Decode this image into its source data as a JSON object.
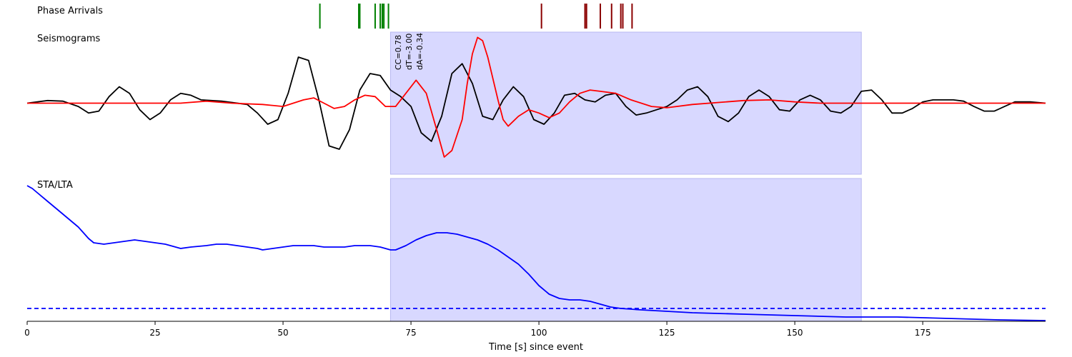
{
  "chart_data": [
    {
      "type": "event-markers",
      "title": "Phase Arrivals",
      "series": [
        {
          "color": "#008000",
          "x": [
            57.2,
            64.8,
            65.0,
            68.0,
            69.0,
            69.4,
            69.7,
            70.6
          ]
        },
        {
          "color": "#8b0000",
          "x": [
            100.5,
            109.0,
            109.3,
            112.0,
            114.2,
            116.0,
            116.4,
            118.2
          ]
        }
      ]
    },
    {
      "type": "line",
      "title": "Seismograms",
      "window": [
        71.0,
        163.0
      ],
      "window_color": "#d8d8ff",
      "annotations": [
        "CC=0.78",
        "dT=-3.00",
        "dA=-0.34"
      ],
      "ylim": [
        -1.08,
        1.08
      ],
      "series": [
        {
          "color": "#000000",
          "points": [
            [
              0,
              0
            ],
            [
              4,
              0.04
            ],
            [
              7,
              0.03
            ],
            [
              10,
              -0.05
            ],
            [
              12,
              -0.15
            ],
            [
              14,
              -0.12
            ],
            [
              16,
              0.1
            ],
            [
              18,
              0.25
            ],
            [
              20,
              0.15
            ],
            [
              22,
              -0.1
            ],
            [
              24,
              -0.25
            ],
            [
              26,
              -0.15
            ],
            [
              28,
              0.05
            ],
            [
              30,
              0.15
            ],
            [
              32,
              0.12
            ],
            [
              34,
              0.05
            ],
            [
              38,
              0.03
            ],
            [
              43,
              -0.02
            ],
            [
              45,
              -0.15
            ],
            [
              47,
              -0.32
            ],
            [
              49,
              -0.25
            ],
            [
              51,
              0.15
            ],
            [
              53,
              0.7
            ],
            [
              55,
              0.65
            ],
            [
              57,
              0.05
            ],
            [
              59,
              -0.65
            ],
            [
              61,
              -0.7
            ],
            [
              63,
              -0.4
            ],
            [
              65,
              0.2
            ],
            [
              67,
              0.45
            ],
            [
              69,
              0.42
            ],
            [
              71,
              0.2
            ],
            [
              73,
              0.1
            ],
            [
              75,
              -0.05
            ],
            [
              77,
              -0.45
            ],
            [
              79,
              -0.58
            ],
            [
              81,
              -0.2
            ],
            [
              83,
              0.45
            ],
            [
              85,
              0.6
            ],
            [
              87,
              0.3
            ],
            [
              89,
              -0.2
            ],
            [
              91,
              -0.25
            ],
            [
              93,
              0.05
            ],
            [
              95,
              0.25
            ],
            [
              97,
              0.1
            ],
            [
              99,
              -0.25
            ],
            [
              101,
              -0.32
            ],
            [
              103,
              -0.15
            ],
            [
              105,
              0.12
            ],
            [
              107,
              0.15
            ],
            [
              109,
              0.05
            ],
            [
              111,
              0.02
            ],
            [
              113,
              0.12
            ],
            [
              115,
              0.15
            ],
            [
              117,
              -0.05
            ],
            [
              119,
              -0.18
            ],
            [
              121,
              -0.15
            ],
            [
              123,
              -0.1
            ],
            [
              125,
              -0.05
            ],
            [
              127,
              0.05
            ],
            [
              129,
              0.2
            ],
            [
              131,
              0.25
            ],
            [
              133,
              0.1
            ],
            [
              135,
              -0.2
            ],
            [
              137,
              -0.28
            ],
            [
              139,
              -0.15
            ],
            [
              141,
              0.1
            ],
            [
              143,
              0.2
            ],
            [
              145,
              0.1
            ],
            [
              147,
              -0.1
            ],
            [
              149,
              -0.12
            ],
            [
              151,
              0.05
            ],
            [
              153,
              0.12
            ],
            [
              155,
              0.05
            ],
            [
              157,
              -0.12
            ],
            [
              159,
              -0.15
            ],
            [
              161,
              -0.05
            ],
            [
              163,
              0.18
            ],
            [
              165,
              0.2
            ],
            [
              167,
              0.05
            ],
            [
              169,
              -0.15
            ],
            [
              171,
              -0.15
            ],
            [
              173,
              -0.08
            ],
            [
              175,
              0.02
            ],
            [
              177,
              0.05
            ],
            [
              181,
              0.05
            ],
            [
              183,
              0.03
            ],
            [
              185,
              -0.05
            ],
            [
              187,
              -0.12
            ],
            [
              189,
              -0.12
            ],
            [
              191,
              -0.05
            ],
            [
              193,
              0.02
            ],
            [
              196,
              0.02
            ],
            [
              199,
              0
            ]
          ]
        },
        {
          "color": "#ff0000",
          "points": [
            [
              0,
              0
            ],
            [
              10,
              0
            ],
            [
              20,
              0
            ],
            [
              25,
              0
            ],
            [
              30,
              0
            ],
            [
              35,
              0.03
            ],
            [
              40,
              0
            ],
            [
              46,
              -0.02
            ],
            [
              50,
              -0.05
            ],
            [
              54,
              0.05
            ],
            [
              56,
              0.08
            ],
            [
              58,
              0
            ],
            [
              60,
              -0.08
            ],
            [
              62,
              -0.05
            ],
            [
              64,
              0.05
            ],
            [
              66,
              0.12
            ],
            [
              68,
              0.1
            ],
            [
              70,
              -0.05
            ],
            [
              72,
              -0.05
            ],
            [
              74,
              0.15
            ],
            [
              76,
              0.35
            ],
            [
              78,
              0.15
            ],
            [
              80,
              -0.4
            ],
            [
              81.5,
              -0.82
            ],
            [
              83,
              -0.72
            ],
            [
              85,
              -0.25
            ],
            [
              86,
              0.3
            ],
            [
              87,
              0.75
            ],
            [
              88,
              1.0
            ],
            [
              89,
              0.95
            ],
            [
              90,
              0.7
            ],
            [
              92,
              0.05
            ],
            [
              93,
              -0.25
            ],
            [
              94,
              -0.35
            ],
            [
              96,
              -0.2
            ],
            [
              98,
              -0.1
            ],
            [
              100,
              -0.15
            ],
            [
              102,
              -0.22
            ],
            [
              104,
              -0.15
            ],
            [
              106,
              0.02
            ],
            [
              108,
              0.15
            ],
            [
              110,
              0.2
            ],
            [
              112,
              0.18
            ],
            [
              115,
              0.15
            ],
            [
              118,
              0.05
            ],
            [
              122,
              -0.05
            ],
            [
              125,
              -0.07
            ],
            [
              130,
              -0.02
            ],
            [
              140,
              0.04
            ],
            [
              145,
              0.05
            ],
            [
              150,
              0.02
            ],
            [
              155,
              0
            ],
            [
              160,
              0
            ],
            [
              170,
              0
            ],
            [
              180,
              0
            ],
            [
              190,
              0
            ],
            [
              199,
              0
            ]
          ]
        }
      ]
    },
    {
      "type": "line",
      "title": "STA/LTA",
      "window": [
        71.0,
        163.0
      ],
      "window_color": "#d8d8ff",
      "threshold": 0.09,
      "threshold_color": "#0000ff",
      "ylim": [
        0,
        1
      ],
      "series": [
        {
          "color": "#0000ff",
          "points": [
            [
              0,
              0.95
            ],
            [
              1,
              0.93
            ],
            [
              2,
              0.9
            ],
            [
              4,
              0.84
            ],
            [
              6,
              0.78
            ],
            [
              8,
              0.72
            ],
            [
              10,
              0.66
            ],
            [
              12,
              0.58
            ],
            [
              13,
              0.55
            ],
            [
              15,
              0.54
            ],
            [
              17,
              0.55
            ],
            [
              19,
              0.56
            ],
            [
              21,
              0.57
            ],
            [
              23,
              0.56
            ],
            [
              25,
              0.55
            ],
            [
              27,
              0.54
            ],
            [
              29,
              0.52
            ],
            [
              30,
              0.51
            ],
            [
              32,
              0.52
            ],
            [
              35,
              0.53
            ],
            [
              37,
              0.54
            ],
            [
              39,
              0.54
            ],
            [
              41,
              0.53
            ],
            [
              43,
              0.52
            ],
            [
              45,
              0.51
            ],
            [
              46,
              0.5
            ],
            [
              48,
              0.51
            ],
            [
              50,
              0.52
            ],
            [
              52,
              0.53
            ],
            [
              54,
              0.53
            ],
            [
              56,
              0.53
            ],
            [
              58,
              0.52
            ],
            [
              60,
              0.52
            ],
            [
              62,
              0.52
            ],
            [
              64,
              0.53
            ],
            [
              67,
              0.53
            ],
            [
              69,
              0.52
            ],
            [
              71,
              0.5
            ],
            [
              72,
              0.5
            ],
            [
              74,
              0.53
            ],
            [
              76,
              0.57
            ],
            [
              78,
              0.6
            ],
            [
              80,
              0.62
            ],
            [
              82,
              0.62
            ],
            [
              84,
              0.61
            ],
            [
              86,
              0.59
            ],
            [
              88,
              0.57
            ],
            [
              90,
              0.54
            ],
            [
              92,
              0.5
            ],
            [
              94,
              0.45
            ],
            [
              96,
              0.4
            ],
            [
              98,
              0.33
            ],
            [
              100,
              0.25
            ],
            [
              102,
              0.19
            ],
            [
              104,
              0.16
            ],
            [
              106,
              0.15
            ],
            [
              108,
              0.15
            ],
            [
              110,
              0.14
            ],
            [
              112,
              0.12
            ],
            [
              114,
              0.1
            ],
            [
              116,
              0.09
            ],
            [
              118,
              0.085
            ],
            [
              120,
              0.08
            ],
            [
              125,
              0.07
            ],
            [
              130,
              0.06
            ],
            [
              140,
              0.05
            ],
            [
              150,
              0.04
            ],
            [
              160,
              0.03
            ],
            [
              170,
              0.03
            ],
            [
              180,
              0.02
            ],
            [
              190,
              0.01
            ],
            [
              199,
              0.005
            ]
          ]
        }
      ]
    }
  ],
  "xaxis": {
    "label": "Time [s] since event",
    "min": 0,
    "max": 199,
    "ticks": [
      "0",
      "25",
      "50",
      "75",
      "100",
      "125",
      "150",
      "175"
    ],
    "tick_values": [
      0,
      25,
      50,
      75,
      100,
      125,
      150,
      175
    ]
  }
}
